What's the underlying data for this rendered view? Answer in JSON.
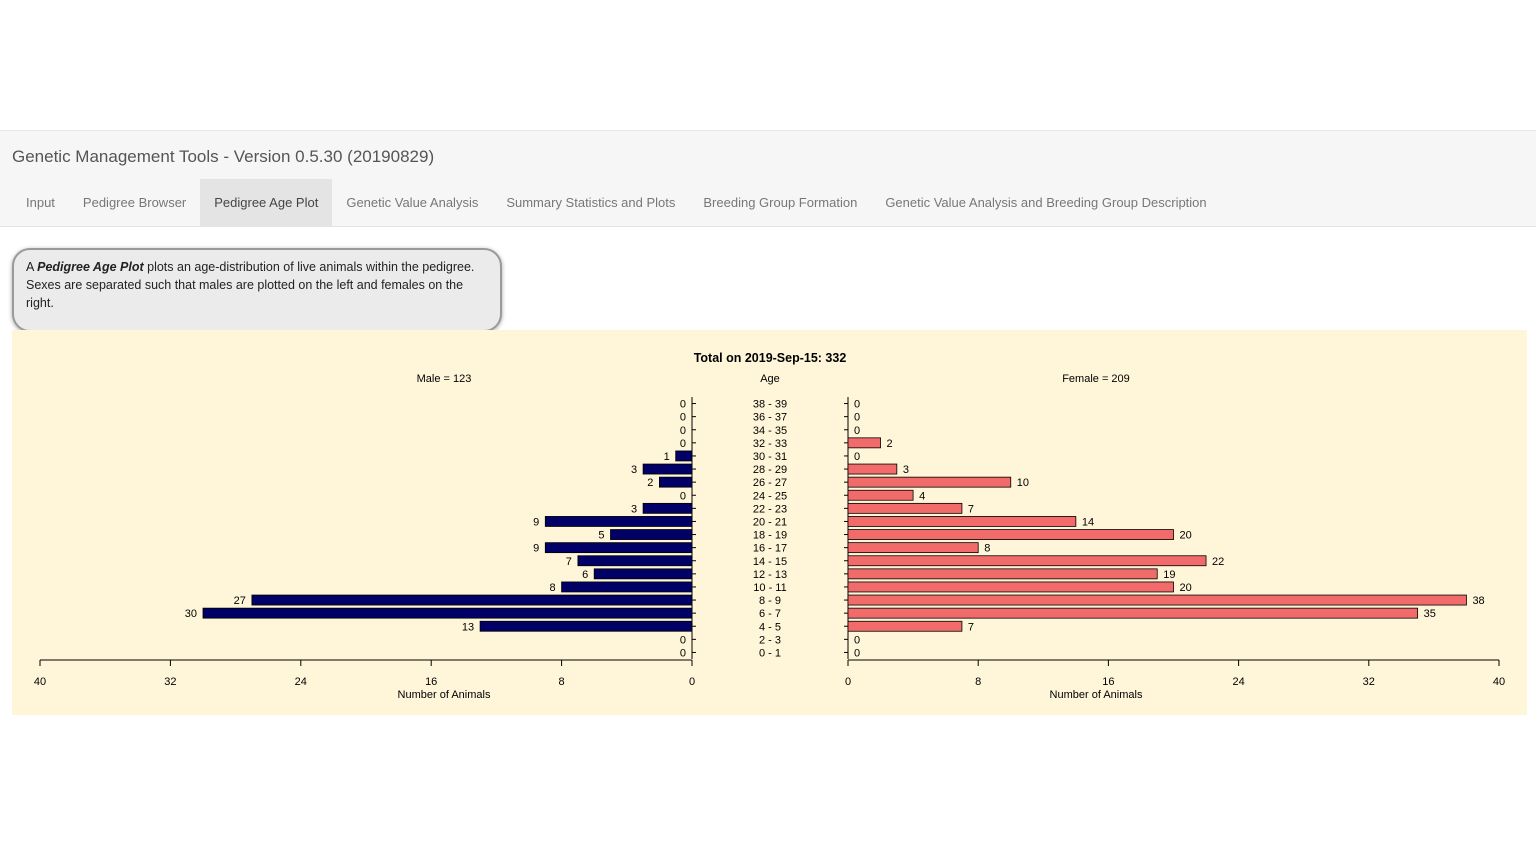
{
  "header": {
    "title": "Genetic Management Tools - Version 0.5.30 (20190829)",
    "tabs": [
      {
        "label": "Input",
        "active": false
      },
      {
        "label": "Pedigree Browser",
        "active": false
      },
      {
        "label": "Pedigree Age Plot",
        "active": true
      },
      {
        "label": "Genetic Value Analysis",
        "active": false
      },
      {
        "label": "Summary Statistics and Plots",
        "active": false
      },
      {
        "label": "Breeding Group Formation",
        "active": false
      },
      {
        "label": "Genetic Value Analysis and Breeding Group Description",
        "active": false
      }
    ]
  },
  "description": {
    "prefix": "A ",
    "term": "Pedigree Age Plot",
    "rest": " plots an age-distribution of live animals within the pedigree. Sexes are separated such that males are plotted on the left and females on the right."
  },
  "colors": {
    "male": "#000066",
    "female": "#f26b6b",
    "panel_bg": "#fff6d9"
  },
  "chart_data": {
    "type": "bar",
    "orientation": "horizontal-pyramid",
    "title": "Total on 2019-Sep-15: 332",
    "center_label": "Age",
    "categories": [
      "38 - 39",
      "36 - 37",
      "34 - 35",
      "32 - 33",
      "30 - 31",
      "28 - 29",
      "26 - 27",
      "24 - 25",
      "22 - 23",
      "20 - 21",
      "18 - 19",
      "16 - 17",
      "14 - 15",
      "12 - 13",
      "10 - 11",
      "8 - 9",
      "6 - 7",
      "4 - 5",
      "2 - 3",
      "0 - 1"
    ],
    "series": [
      {
        "name": "Male = 123",
        "values": [
          0,
          0,
          0,
          0,
          1,
          3,
          2,
          0,
          3,
          9,
          5,
          9,
          7,
          6,
          8,
          27,
          30,
          13,
          0,
          0
        ]
      },
      {
        "name": "Female = 209",
        "values": [
          0,
          0,
          0,
          2,
          0,
          3,
          10,
          4,
          7,
          14,
          20,
          8,
          22,
          19,
          20,
          38,
          35,
          7,
          0,
          0
        ]
      }
    ],
    "xlabel": "Number of Animals",
    "xlim": [
      0,
      40
    ],
    "ticks": [
      "0",
      "8",
      "16",
      "24",
      "32",
      "40"
    ],
    "grid": false
  }
}
